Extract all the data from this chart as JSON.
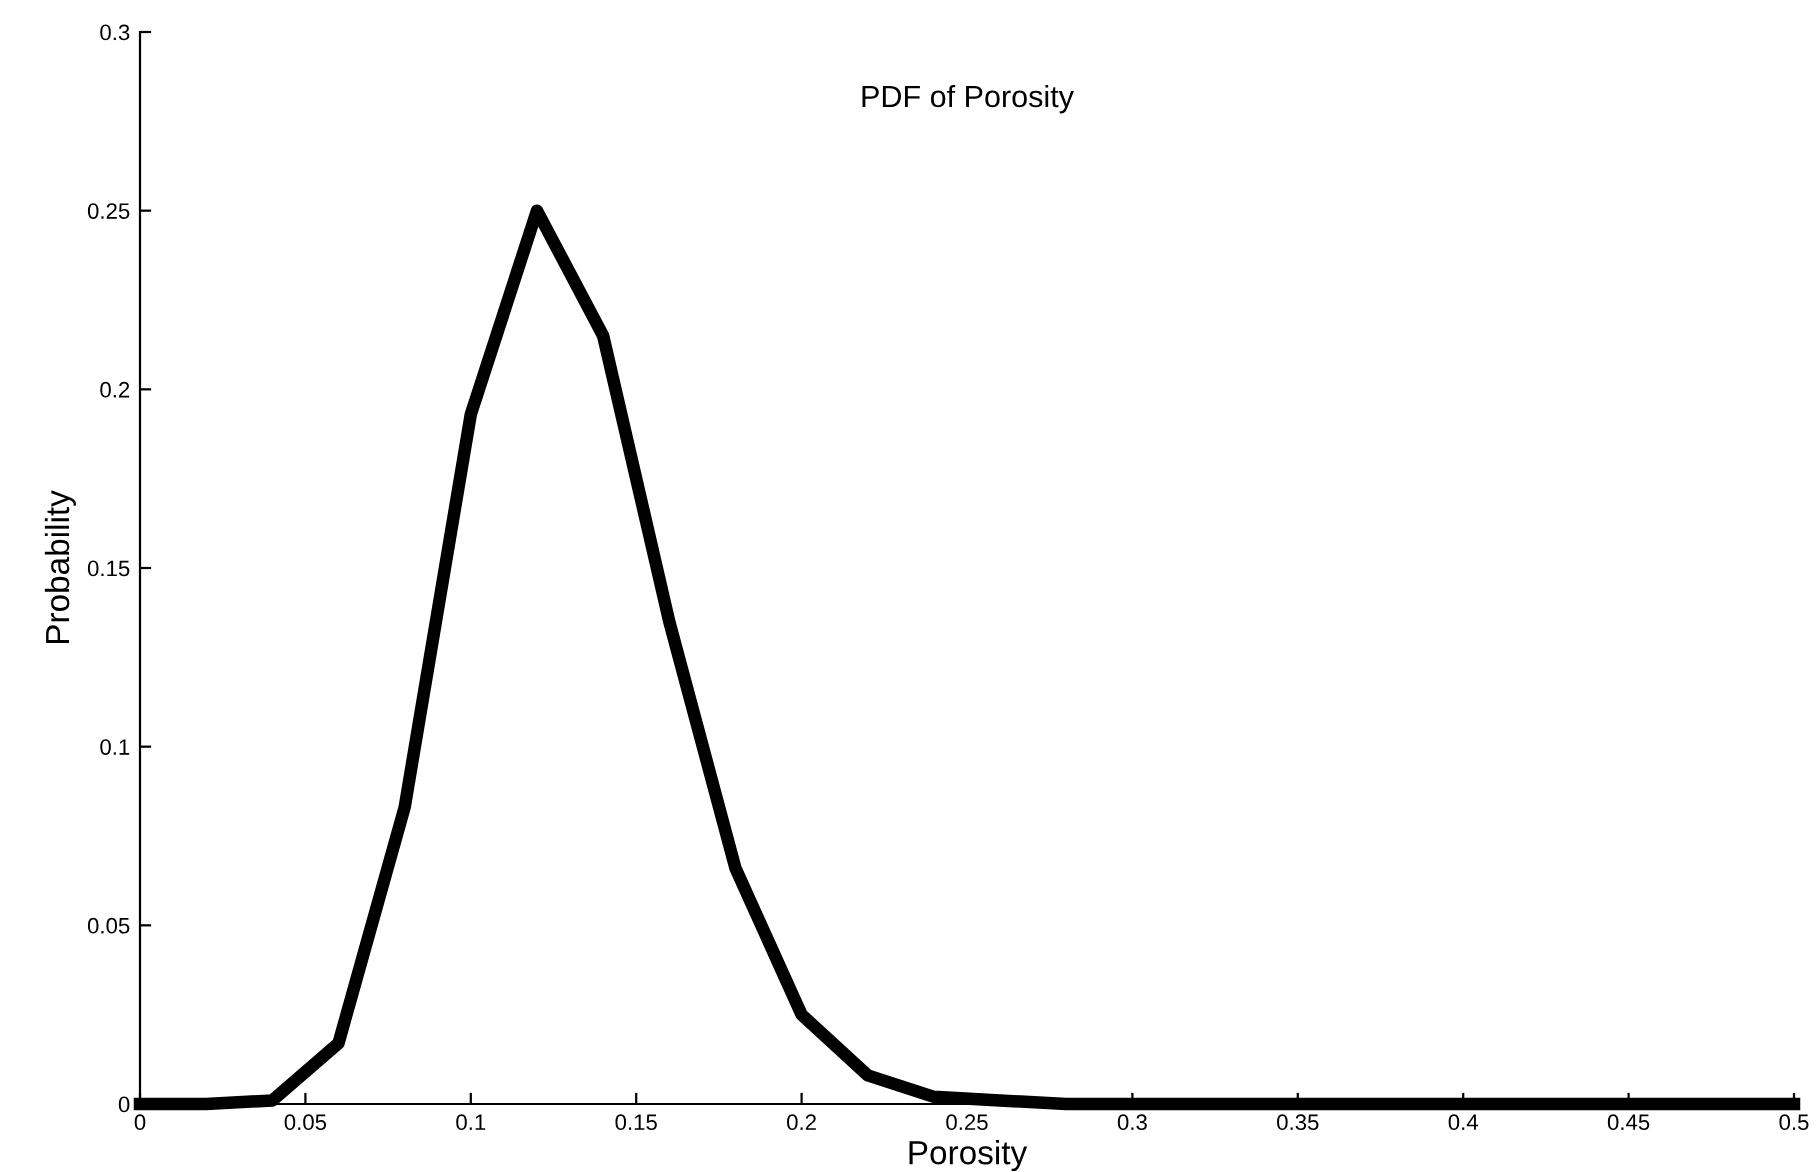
{
  "chart_data": {
    "type": "line",
    "title": "PDF of Porosity",
    "xlabel": "Porosity",
    "ylabel": "Probability",
    "x": [
      0,
      0.02,
      0.04,
      0.06,
      0.08,
      0.1,
      0.12,
      0.14,
      0.16,
      0.18,
      0.2,
      0.22,
      0.24,
      0.26,
      0.28,
      0.3,
      0.32,
      0.34,
      0.36,
      0.38,
      0.4,
      0.42,
      0.44,
      0.46,
      0.48,
      0.5
    ],
    "series": [
      {
        "color": "#000000",
        "values": [
          0,
          0,
          0.001,
          0.017,
          0.083,
          0.193,
          0.25,
          0.215,
          0.135,
          0.066,
          0.025,
          0.008,
          0.002,
          0.001,
          0,
          0,
          0,
          0,
          0,
          0,
          0,
          0,
          0,
          0,
          0,
          0
        ]
      }
    ],
    "xlim": [
      0,
      0.5
    ],
    "ylim": [
      0,
      0.3
    ],
    "xticks": [
      0,
      0.05,
      0.1,
      0.15,
      0.2,
      0.25,
      0.3,
      0.35,
      0.4,
      0.45,
      0.5
    ],
    "yticks": [
      0,
      0.05,
      0.1,
      0.15,
      0.2,
      0.25,
      0.3
    ],
    "grid": false,
    "legend": false,
    "marker": "none",
    "line_style": "solid"
  }
}
